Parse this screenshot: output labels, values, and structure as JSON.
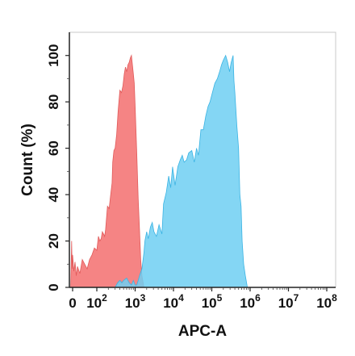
{
  "chart_data": {
    "type": "area",
    "xlabel": "APC-A",
    "ylabel": "Count  (%)",
    "x_scale": "biexponential",
    "x_ticks": [
      {
        "value": 0,
        "base": "0",
        "exp": ""
      },
      {
        "value": 100,
        "base": "10",
        "exp": "2"
      },
      {
        "value": 1000,
        "base": "10",
        "exp": "3"
      },
      {
        "value": 10000,
        "base": "10",
        "exp": "4"
      },
      {
        "value": 100000,
        "base": "10",
        "exp": "5"
      },
      {
        "value": 1000000,
        "base": "10",
        "exp": "6"
      },
      {
        "value": 10000000,
        "base": "10",
        "exp": "7"
      },
      {
        "value": 100000000,
        "base": "10",
        "exp": "8"
      }
    ],
    "y_ticks": [
      0,
      20,
      40,
      60,
      80,
      100
    ],
    "ylim": [
      0,
      110
    ],
    "grid": false,
    "series": [
      {
        "color": "#f47a7a",
        "stroke": "#e05a5a",
        "points": [
          [
            -20,
            0
          ],
          [
            -15,
            10
          ],
          [
            -10,
            20
          ],
          [
            -5,
            8
          ],
          [
            0,
            14
          ],
          [
            5,
            7
          ],
          [
            10,
            11
          ],
          [
            15,
            5
          ],
          [
            20,
            9
          ],
          [
            30,
            6
          ],
          [
            40,
            12
          ],
          [
            50,
            10
          ],
          [
            60,
            8
          ],
          [
            70,
            12
          ],
          [
            80,
            14
          ],
          [
            90,
            17
          ],
          [
            100,
            16
          ],
          [
            110,
            22
          ],
          [
            120,
            20
          ],
          [
            130,
            21
          ],
          [
            140,
            24
          ],
          [
            150,
            23
          ],
          [
            160,
            22
          ],
          [
            170,
            25
          ],
          [
            190,
            35
          ],
          [
            210,
            34
          ],
          [
            230,
            40
          ],
          [
            250,
            45
          ],
          [
            260,
            54
          ],
          [
            280,
            59
          ],
          [
            300,
            60
          ],
          [
            330,
            66
          ],
          [
            360,
            76
          ],
          [
            400,
            85
          ],
          [
            440,
            84
          ],
          [
            480,
            87
          ],
          [
            520,
            92
          ],
          [
            560,
            95
          ],
          [
            600,
            93
          ],
          [
            650,
            96
          ],
          [
            700,
            97
          ],
          [
            750,
            99
          ],
          [
            800,
            100
          ],
          [
            850,
            96
          ],
          [
            900,
            92
          ],
          [
            950,
            88
          ],
          [
            1000,
            78
          ],
          [
            1100,
            58
          ],
          [
            1200,
            38
          ],
          [
            1300,
            25
          ],
          [
            1400,
            12
          ],
          [
            1500,
            5
          ],
          [
            1700,
            0
          ]
        ]
      },
      {
        "color": "#6ecff2",
        "stroke": "#3ab3e3",
        "points": [
          [
            300,
            0
          ],
          [
            350,
            2
          ],
          [
            400,
            3
          ],
          [
            450,
            2
          ],
          [
            500,
            3
          ],
          [
            600,
            4
          ],
          [
            700,
            2
          ],
          [
            800,
            1
          ],
          [
            900,
            3
          ],
          [
            1000,
            1
          ],
          [
            1100,
            1
          ],
          [
            1200,
            3
          ],
          [
            1300,
            5
          ],
          [
            1500,
            8
          ],
          [
            1700,
            15
          ],
          [
            1800,
            20
          ],
          [
            2000,
            24
          ],
          [
            2200,
            21
          ],
          [
            2500,
            26
          ],
          [
            2800,
            28
          ],
          [
            3100,
            24
          ],
          [
            3600,
            22
          ],
          [
            4200,
            27
          ],
          [
            5000,
            23
          ],
          [
            5500,
            36
          ],
          [
            6500,
            41
          ],
          [
            7500,
            48
          ],
          [
            8500,
            43
          ],
          [
            9500,
            52
          ],
          [
            11000,
            44
          ],
          [
            13000,
            52
          ],
          [
            15000,
            55
          ],
          [
            17000,
            57
          ],
          [
            19000,
            54
          ],
          [
            22000,
            55
          ],
          [
            25000,
            58
          ],
          [
            30000,
            59
          ],
          [
            35000,
            54
          ],
          [
            40000,
            60
          ],
          [
            45000,
            57
          ],
          [
            52000,
            68
          ],
          [
            60000,
            68
          ],
          [
            70000,
            74
          ],
          [
            80000,
            78
          ],
          [
            90000,
            80
          ],
          [
            100000,
            83
          ],
          [
            120000,
            88
          ],
          [
            140000,
            90
          ],
          [
            160000,
            93
          ],
          [
            180000,
            96
          ],
          [
            200000,
            98
          ],
          [
            230000,
            100
          ],
          [
            260000,
            97
          ],
          [
            290000,
            93
          ],
          [
            320000,
            97
          ],
          [
            360000,
            100
          ],
          [
            380000,
            89
          ],
          [
            400000,
            84
          ],
          [
            450000,
            70
          ],
          [
            500000,
            60
          ],
          [
            540000,
            40
          ],
          [
            580000,
            35
          ],
          [
            620000,
            20
          ],
          [
            680000,
            10
          ],
          [
            750000,
            5
          ],
          [
            850000,
            0
          ]
        ]
      }
    ]
  }
}
